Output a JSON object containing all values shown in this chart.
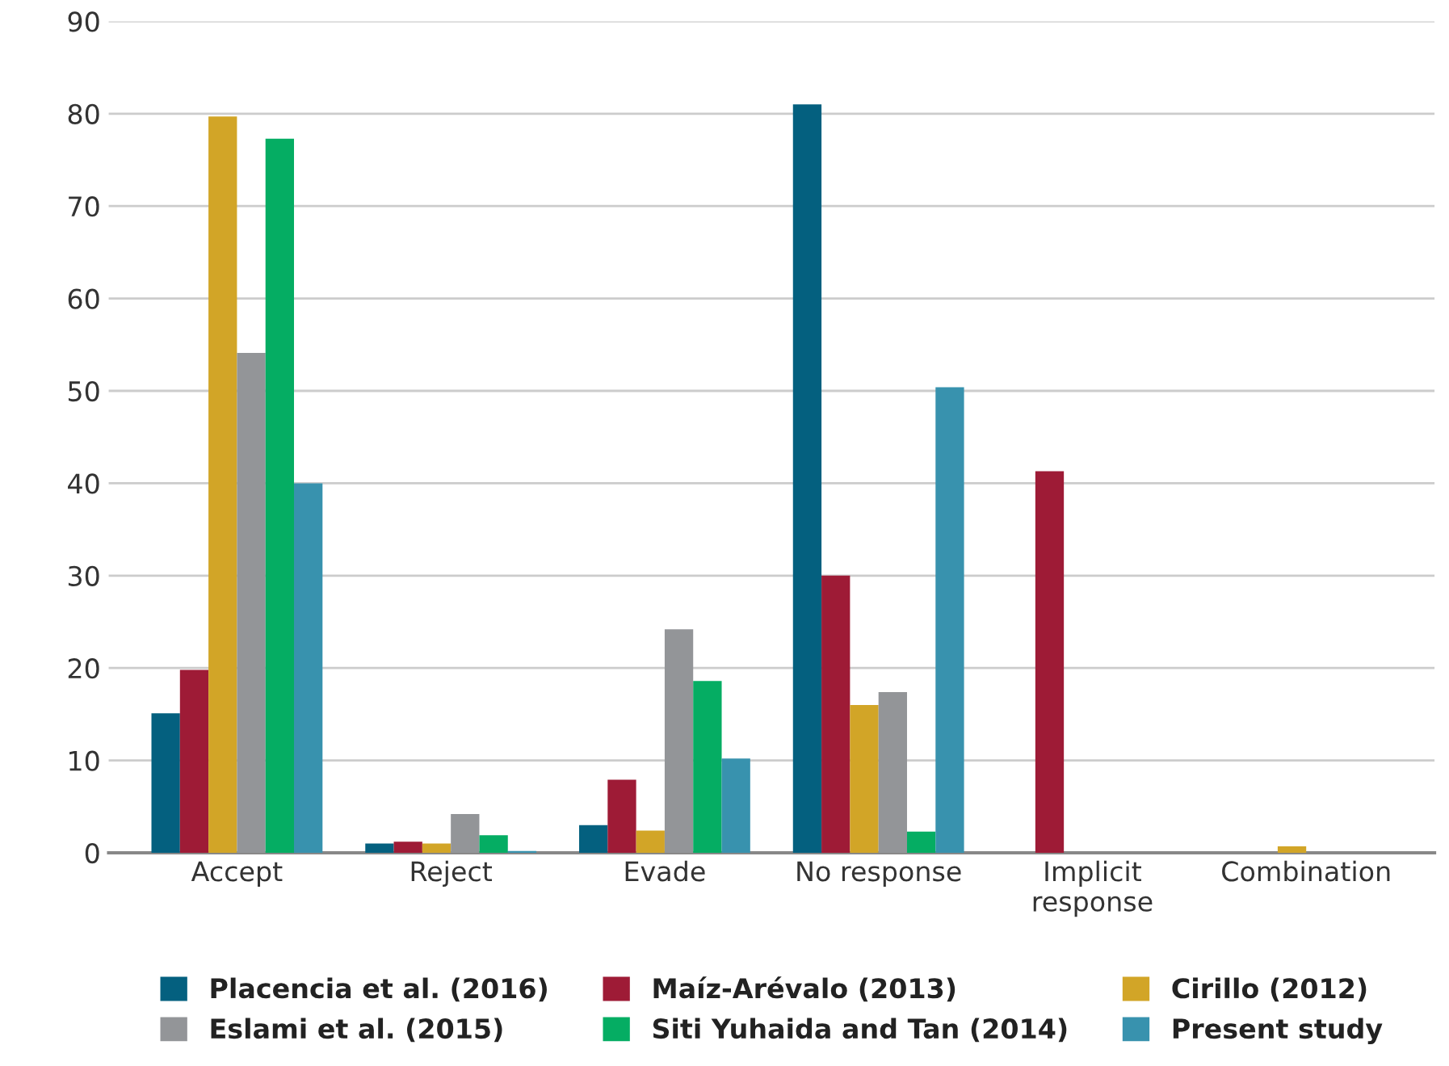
{
  "chart_data": {
    "type": "bar",
    "categories": [
      "Accept",
      "Reject",
      "Evade",
      "No response",
      "Implicit\nresponse",
      "Combination"
    ],
    "series": [
      {
        "name": "Placencia et al. (2016)",
        "color": "#04607f",
        "values": [
          15.1,
          1.0,
          3.0,
          81.0,
          0,
          0
        ]
      },
      {
        "name": "Maíz-Arévalo (2013)",
        "color": "#9e1b36",
        "values": [
          19.8,
          1.2,
          7.9,
          30.0,
          41.3,
          0
        ]
      },
      {
        "name": "Cirillo (2012)",
        "color": "#d2a527",
        "values": [
          79.7,
          1.0,
          2.4,
          16.0,
          0,
          0.7
        ]
      },
      {
        "name": "Eslami et al. (2015)",
        "color": "#939598",
        "values": [
          54.1,
          4.2,
          24.2,
          17.4,
          0,
          0
        ]
      },
      {
        "name": "Siti Yuhaida and Tan (2014)",
        "color": "#05ad63",
        "values": [
          77.3,
          1.9,
          18.6,
          2.3,
          0,
          0
        ]
      },
      {
        "name": "Present study",
        "color": "#3892ae",
        "values": [
          40.0,
          0.2,
          10.2,
          50.4,
          0,
          0
        ]
      }
    ],
    "ylim": [
      0,
      90
    ],
    "yticks": [
      0,
      10,
      20,
      30,
      40,
      50,
      60,
      70,
      80,
      90
    ],
    "grid": "y",
    "legend": "bottom"
  }
}
